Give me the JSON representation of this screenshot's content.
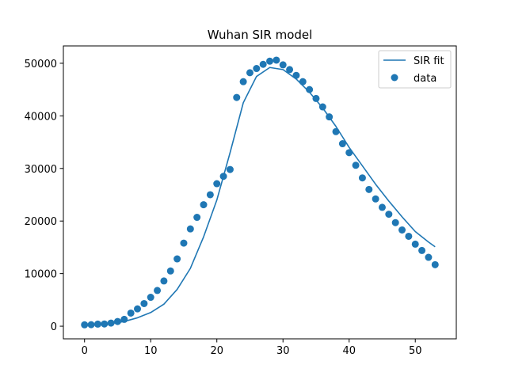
{
  "chart_data": {
    "type": "scatter",
    "title": "Wuhan SIR model",
    "xlabel": "",
    "ylabel": "",
    "xlim": [
      -3.2,
      56.2
    ],
    "ylim": [
      -2400,
      53300
    ],
    "xticks": [
      0,
      10,
      20,
      30,
      40,
      50
    ],
    "yticks": [
      0,
      10000,
      20000,
      30000,
      40000,
      50000
    ],
    "grid": false,
    "legend_position": "top-right",
    "colors": {
      "series": "#1f77b4"
    },
    "series": [
      {
        "name": "SIR fit",
        "kind": "line",
        "x": [
          0,
          2,
          4,
          6,
          8,
          10,
          12,
          14,
          16,
          18,
          20,
          22,
          24,
          26,
          28,
          30,
          32,
          34,
          36,
          38,
          40,
          42,
          44,
          46,
          48,
          50,
          52,
          53
        ],
        "y": [
          200,
          300,
          500,
          900,
          1600,
          2600,
          4200,
          7000,
          11000,
          17000,
          24000,
          33000,
          42500,
          47500,
          49200,
          48800,
          47000,
          44500,
          41500,
          38000,
          34000,
          30500,
          27000,
          23800,
          20800,
          18000,
          16000,
          15100
        ]
      },
      {
        "name": "data",
        "kind": "scatter",
        "x": [
          0,
          1,
          2,
          3,
          4,
          5,
          6,
          7,
          8,
          9,
          10,
          11,
          12,
          13,
          14,
          15,
          16,
          17,
          18,
          19,
          20,
          21,
          22,
          23,
          24,
          25,
          26,
          27,
          28,
          29,
          30,
          31,
          32,
          33,
          34,
          35,
          36,
          37,
          38,
          39,
          40,
          41,
          42,
          43,
          44,
          45,
          46,
          47,
          48,
          49,
          50,
          51,
          52,
          53
        ],
        "y": [
          270,
          290,
          400,
          430,
          600,
          900,
          1300,
          2500,
          3300,
          4300,
          5500,
          6800,
          8600,
          10500,
          12800,
          15800,
          18500,
          20700,
          23100,
          25000,
          27100,
          28500,
          29800,
          43500,
          46500,
          48200,
          49000,
          49800,
          50400,
          50600,
          49700,
          48800,
          47700,
          46500,
          45000,
          43300,
          41700,
          39800,
          37000,
          34700,
          33000,
          30600,
          28200,
          26000,
          24200,
          22600,
          21300,
          19700,
          18300,
          17100,
          15600,
          14400,
          13100,
          11700
        ]
      }
    ]
  }
}
